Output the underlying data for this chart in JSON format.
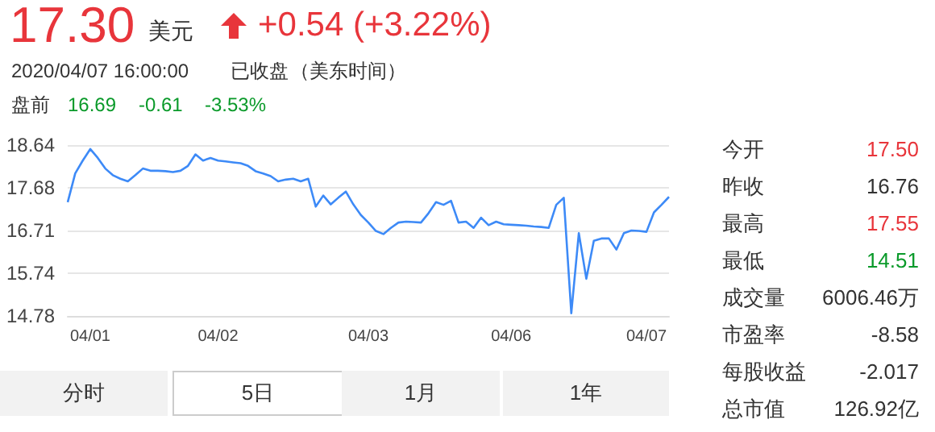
{
  "chart_data": {
    "type": "line",
    "title": "17.30",
    "annotations": [
      "美元",
      "+0.54 (+3.22%)",
      "2020/04/07 16:00:00",
      "已收盘",
      "（美东时间）",
      "盘前",
      "16.69",
      "-0.61",
      "-3.53%",
      "今开",
      "17.50",
      "昨收",
      "16.76",
      "最高",
      "17.55",
      "最低",
      "14.51",
      "成交量",
      "6006.46万",
      "市盈率",
      "-8.58",
      "每股收益",
      "-2.017",
      "总市值",
      "126.92亿",
      "分时",
      "5日",
      "1月",
      "1年"
    ],
    "categories": [
      null,
      null,
      null,
      "04/01",
      null,
      null,
      null,
      null,
      null,
      null,
      null,
      null,
      null,
      null,
      null,
      null,
      null,
      null,
      null,
      null,
      "04/02",
      null,
      null,
      null,
      null,
      null,
      null,
      null,
      null,
      null,
      null,
      null,
      null,
      null,
      null,
      null,
      null,
      null,
      null,
      null,
      "04/03",
      null,
      null,
      null,
      null,
      null,
      null,
      null,
      null,
      null,
      null,
      null,
      null,
      null,
      null,
      null,
      null,
      null,
      null,
      "04/06",
      null,
      null,
      null,
      null,
      null,
      null,
      null,
      null,
      null,
      null,
      null,
      null,
      null,
      null,
      null,
      null,
      null,
      "04/07",
      null,
      null,
      null
    ],
    "ylim": [
      14.78,
      18.64
    ],
    "yticks": [
      14.78,
      15.74,
      16.71,
      17.68,
      18.64
    ],
    "grid": "y",
    "series": [
      {
        "color": "#3d8af7",
        "values": [
          17.35,
          18.0,
          18.29,
          18.55,
          18.35,
          18.11,
          17.96,
          17.88,
          17.82,
          17.96,
          18.11,
          18.06,
          18.06,
          18.05,
          18.03,
          18.06,
          18.17,
          18.43,
          18.29,
          18.35,
          18.29,
          18.27,
          18.25,
          18.23,
          18.17,
          18.05,
          18.0,
          17.94,
          17.82,
          17.86,
          17.88,
          17.82,
          17.88,
          17.25,
          17.5,
          17.3,
          17.45,
          17.59,
          17.3,
          17.06,
          16.89,
          16.7,
          16.63,
          16.77,
          16.89,
          16.91,
          16.9,
          16.89,
          17.1,
          17.35,
          17.29,
          17.38,
          16.89,
          16.91,
          16.77,
          17.0,
          16.83,
          16.91,
          16.85,
          16.84,
          16.83,
          16.82,
          16.8,
          16.79,
          16.77,
          17.29,
          17.45,
          14.84,
          16.65,
          15.62,
          16.48,
          16.53,
          16.53,
          16.28,
          16.65,
          16.71,
          16.7,
          16.68,
          17.12,
          17.29,
          17.47
        ]
      }
    ]
  }
}
